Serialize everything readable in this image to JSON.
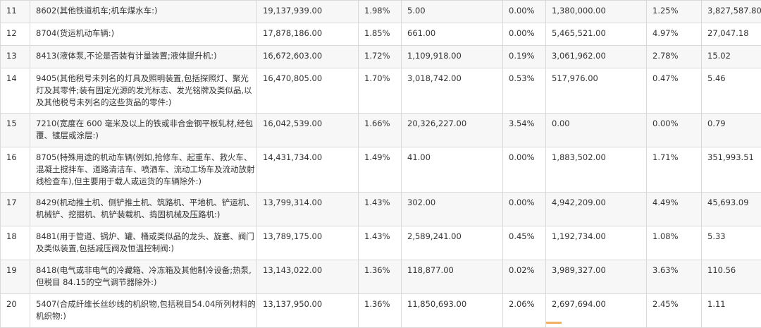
{
  "table": {
    "rows": [
      {
        "idx": "11",
        "desc": "8602(其他铁道机车;机车煤水车:)",
        "v1": "19,137,939.00",
        "p1": "1.98%",
        "v2": "5.00",
        "p2": "0.00%",
        "v3": "1,380,000.00",
        "p3": "1.25%",
        "v4": "3,827,587.80"
      },
      {
        "idx": "12",
        "desc": "8704(货运机动车辆:)",
        "v1": "17,878,186.00",
        "p1": "1.85%",
        "v2": "661.00",
        "p2": "0.00%",
        "v3": "5,465,521.00",
        "p3": "4.97%",
        "v4": "27,047.18"
      },
      {
        "idx": "13",
        "desc": "8413(液体泵,不论是否装有计量装置;液体提升机:)",
        "v1": "16,672,603.00",
        "p1": "1.72%",
        "v2": "1,109,918.00",
        "p2": "0.19%",
        "v3": "3,061,962.00",
        "p3": "2.78%",
        "v4": "15.02"
      },
      {
        "idx": "14",
        "desc": "9405(其他税号未列名的灯具及照明装置,包括探照灯、聚光灯及其零件;装有固定光源的发光标志、发光铭牌及类似品,以及其他税号未列名的这些货品的零件:)",
        "v1": "16,470,805.00",
        "p1": "1.70%",
        "v2": "3,018,742.00",
        "p2": "0.53%",
        "v3": "517,976.00",
        "p3": "0.47%",
        "v4": "5.46"
      },
      {
        "idx": "15",
        "desc": "7210(宽度在 600 毫米及以上的铁或非合金钢平板轧材,经包覆、镀层或涂层:)",
        "v1": "16,042,539.00",
        "p1": "1.66%",
        "v2": "20,326,227.00",
        "p2": "3.54%",
        "v3": "0.00",
        "p3": "0.00%",
        "v4": "0.79"
      },
      {
        "idx": "16",
        "desc": "8705(特殊用途的机动车辆(例如,抢修车、起重车、救火车、混凝土搅拌车、道路清洁车、喷洒车、流动工场车及流动放射线检查车),但主要用于载人或运货的车辆除外:)",
        "v1": "14,431,734.00",
        "p1": "1.49%",
        "v2": "41.00",
        "p2": "0.00%",
        "v3": "1,883,502.00",
        "p3": "1.71%",
        "v4": "351,993.51"
      },
      {
        "idx": "17",
        "desc": "8429(机动推土机、侧铲推土机、筑路机、平地机、铲运机、机械铲、挖掘机、机铲装载机、捣固机械及压路机:)",
        "v1": "13,799,314.00",
        "p1": "1.43%",
        "v2": "302.00",
        "p2": "0.00%",
        "v3": "4,942,209.00",
        "p3": "4.49%",
        "v4": "45,693.09"
      },
      {
        "idx": "18",
        "desc": "8481(用于管道、锅炉、罐、桶或类似品的龙头、旋塞、阀门及类似装置,包括减压阀及恒温控制阀:)",
        "v1": "13,789,175.00",
        "p1": "1.43%",
        "v2": "2,589,241.00",
        "p2": "0.45%",
        "v3": "1,192,734.00",
        "p3": "1.08%",
        "v4": "5.33"
      },
      {
        "idx": "19",
        "desc": "8418(电气或非电气的冷藏箱、冷冻箱及其他制冷设备;热泵,但税目 84.15的空气调节器除外:)",
        "v1": "13,143,022.00",
        "p1": "1.36%",
        "v2": "118,877.00",
        "p2": "0.02%",
        "v3": "3,989,327.00",
        "p3": "3.63%",
        "v4": "110.56"
      },
      {
        "idx": "20",
        "desc": "5407(合成纤维长丝纱线的机织物,包括税目54.04所列材料的机织物:)",
        "v1": "13,137,950.00",
        "p1": "1.36%",
        "v2": "11,850,693.00",
        "p2": "2.06%",
        "v3": "2,697,694.00",
        "p3": "2.45%",
        "v4": "1.11"
      }
    ]
  },
  "colors": {
    "stripe": "#f7f7f7",
    "border": "#d9d9d9",
    "text": "#333333"
  }
}
